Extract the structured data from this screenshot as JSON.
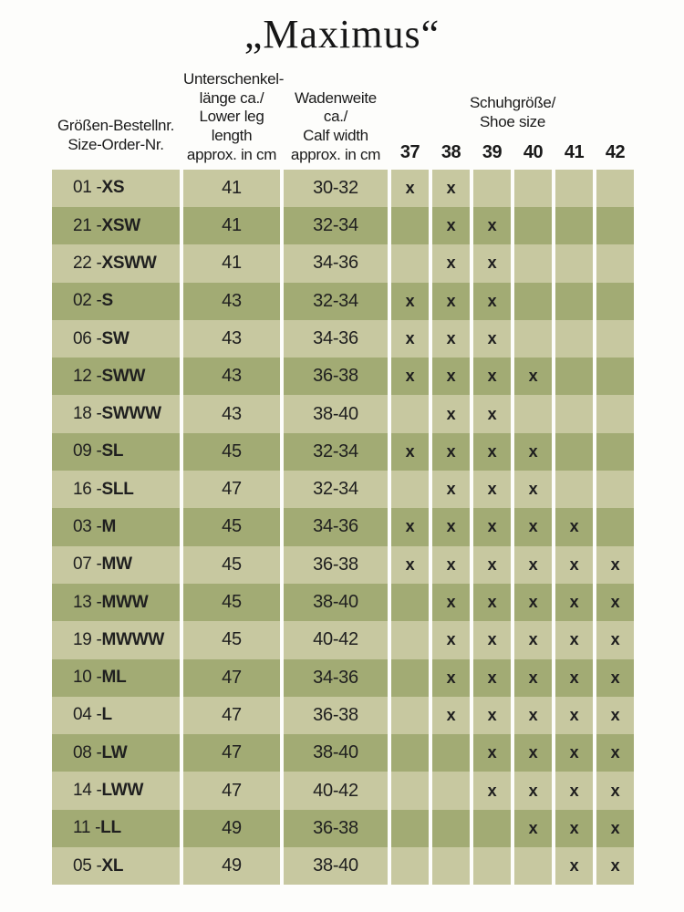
{
  "title": "„Maximus“",
  "table": {
    "headers": {
      "order": [
        "Größen-Bestellnr.",
        "Size-Order-Nr."
      ],
      "leg_length": [
        "Unterschenkel-",
        "länge ca./",
        "Lower leg length",
        "approx. in cm"
      ],
      "calf_width": [
        "Wadenweite ca./",
        "Calf width",
        "approx. in cm"
      ],
      "shoe_size_group": [
        "Schuhgröße/",
        "Shoe size"
      ],
      "shoe_sizes": [
        "37",
        "38",
        "39",
        "40",
        "41",
        "42"
      ]
    },
    "order_separator": " - ",
    "mark_glyph": "x",
    "rows": [
      {
        "order_nr": "01",
        "size_code": "XS",
        "leg_length": "41",
        "calf_width": "30-32",
        "marks": [
          1,
          1,
          0,
          0,
          0,
          0
        ]
      },
      {
        "order_nr": "21",
        "size_code": "XSW",
        "leg_length": "41",
        "calf_width": "32-34",
        "marks": [
          0,
          1,
          1,
          0,
          0,
          0
        ]
      },
      {
        "order_nr": "22",
        "size_code": "XSWW",
        "leg_length": "41",
        "calf_width": "34-36",
        "marks": [
          0,
          1,
          1,
          0,
          0,
          0
        ]
      },
      {
        "order_nr": "02",
        "size_code": "S",
        "leg_length": "43",
        "calf_width": "32-34",
        "marks": [
          1,
          1,
          1,
          0,
          0,
          0
        ]
      },
      {
        "order_nr": "06",
        "size_code": "SW",
        "leg_length": "43",
        "calf_width": "34-36",
        "marks": [
          1,
          1,
          1,
          0,
          0,
          0
        ]
      },
      {
        "order_nr": "12",
        "size_code": "SWW",
        "leg_length": "43",
        "calf_width": "36-38",
        "marks": [
          1,
          1,
          1,
          1,
          0,
          0
        ]
      },
      {
        "order_nr": "18",
        "size_code": "SWWW",
        "leg_length": "43",
        "calf_width": "38-40",
        "marks": [
          0,
          1,
          1,
          0,
          0,
          0
        ]
      },
      {
        "order_nr": "09",
        "size_code": "SL",
        "leg_length": "45",
        "calf_width": "32-34",
        "marks": [
          1,
          1,
          1,
          1,
          0,
          0
        ]
      },
      {
        "order_nr": "16",
        "size_code": "SLL",
        "leg_length": "47",
        "calf_width": "32-34",
        "marks": [
          0,
          1,
          1,
          1,
          0,
          0
        ]
      },
      {
        "order_nr": "03",
        "size_code": "M",
        "leg_length": "45",
        "calf_width": "34-36",
        "marks": [
          1,
          1,
          1,
          1,
          1,
          0
        ]
      },
      {
        "order_nr": "07",
        "size_code": "MW",
        "leg_length": "45",
        "calf_width": "36-38",
        "marks": [
          1,
          1,
          1,
          1,
          1,
          1
        ]
      },
      {
        "order_nr": "13",
        "size_code": "MWW",
        "leg_length": "45",
        "calf_width": "38-40",
        "marks": [
          0,
          1,
          1,
          1,
          1,
          1
        ]
      },
      {
        "order_nr": "19",
        "size_code": "MWWW",
        "leg_length": "45",
        "calf_width": "40-42",
        "marks": [
          0,
          1,
          1,
          1,
          1,
          1
        ]
      },
      {
        "order_nr": "10",
        "size_code": "ML",
        "leg_length": "47",
        "calf_width": "34-36",
        "marks": [
          0,
          1,
          1,
          1,
          1,
          1
        ]
      },
      {
        "order_nr": "04",
        "size_code": "L",
        "leg_length": "47",
        "calf_width": "36-38",
        "marks": [
          0,
          1,
          1,
          1,
          1,
          1
        ]
      },
      {
        "order_nr": "08",
        "size_code": "LW",
        "leg_length": "47",
        "calf_width": "38-40",
        "marks": [
          0,
          0,
          1,
          1,
          1,
          1
        ]
      },
      {
        "order_nr": "14",
        "size_code": "LWW",
        "leg_length": "47",
        "calf_width": "40-42",
        "marks": [
          0,
          0,
          1,
          1,
          1,
          1
        ]
      },
      {
        "order_nr": "11",
        "size_code": "LL",
        "leg_length": "49",
        "calf_width": "36-38",
        "marks": [
          0,
          0,
          0,
          1,
          1,
          1
        ]
      },
      {
        "order_nr": "05",
        "size_code": "XL",
        "leg_length": "49",
        "calf_width": "38-40",
        "marks": [
          0,
          0,
          0,
          0,
          1,
          1
        ]
      }
    ]
  },
  "colors": {
    "row_light": "#c7c8a0",
    "row_dark": "#a2ab74",
    "divider": "#f3f3e9",
    "text": "#1c1c1c"
  }
}
